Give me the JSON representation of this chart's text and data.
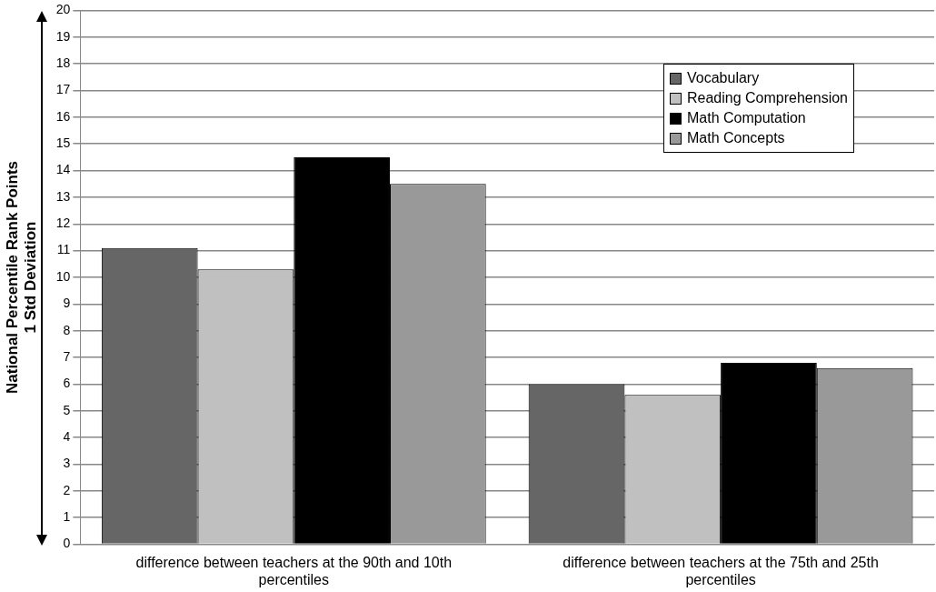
{
  "chart_data": {
    "type": "bar",
    "ylabel": "National Percentile Rank Points\n1 Std Deviation",
    "categories": [
      "difference between teachers at the 90th and 10th percentiles",
      "difference between teachers at the 75th and 25th percentiles"
    ],
    "series": [
      {
        "name": "Vocabulary",
        "color": "#666666",
        "values": [
          11.1,
          6.0
        ]
      },
      {
        "name": "Reading Comprehension",
        "color": "#c0c0c0",
        "values": [
          10.3,
          5.6
        ]
      },
      {
        "name": "Math Computation",
        "color": "#000000",
        "values": [
          14.5,
          6.8
        ]
      },
      {
        "name": "Math Concepts",
        "color": "#999999",
        "values": [
          13.5,
          6.6
        ]
      }
    ],
    "ylim": [
      0,
      20
    ],
    "yticks": [
      0,
      1,
      2,
      3,
      4,
      5,
      6,
      7,
      8,
      9,
      10,
      11,
      12,
      13,
      14,
      15,
      16,
      17,
      18,
      19,
      20
    ],
    "grid": "y",
    "legend": "top right"
  }
}
